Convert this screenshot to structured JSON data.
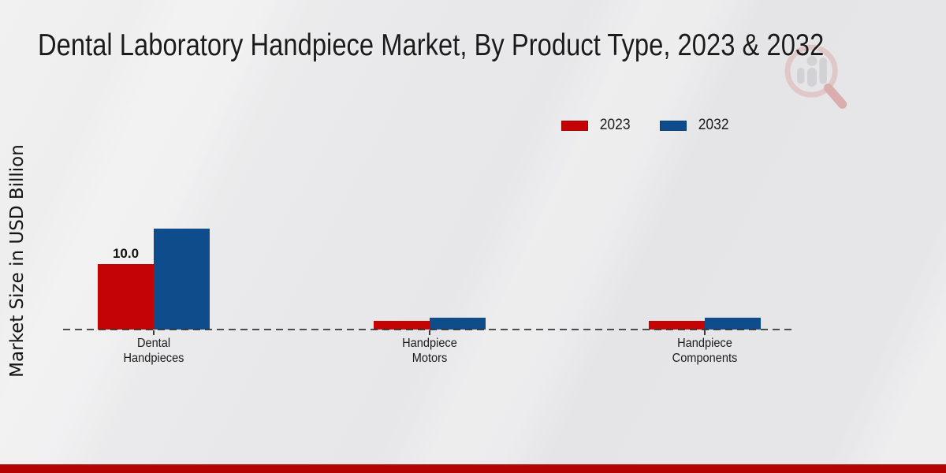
{
  "page": {
    "title": "Dental Laboratory Handpiece Market, By Product Type, 2023 & 2032",
    "y_axis_label": "Market Size in USD Billion",
    "watermark_icon": "magnifier-bar-chart-logo"
  },
  "legend": {
    "items": [
      {
        "label": "2023",
        "color": "#c40404"
      },
      {
        "label": "2032",
        "color": "#0f4c8c"
      }
    ]
  },
  "colors": {
    "bar_2023": "#c40404",
    "bar_2032": "#0f4c8c",
    "footer_bar": "#b50404",
    "background": "#e8e8ea",
    "baseline": "#2a2a2a"
  },
  "chart_data": {
    "type": "bar",
    "title": "Dental Laboratory Handpiece Market, By Product Type, 2023 & 2032",
    "xlabel": "",
    "ylabel": "Market Size in USD Billion",
    "categories": [
      "Dental Handpieces",
      "Handpiece Motors",
      "Handpiece Components"
    ],
    "category_label_lines": [
      [
        "Dental",
        "Handpieces"
      ],
      [
        "Handpiece",
        "Motors"
      ],
      [
        "Handpiece",
        "Components"
      ]
    ],
    "series": [
      {
        "name": "2023",
        "color": "#c40404",
        "values": [
          10.0,
          1.3,
          1.3
        ]
      },
      {
        "name": "2032",
        "color": "#0f4c8c",
        "values": [
          15.4,
          1.8,
          1.8
        ]
      }
    ],
    "annotations": [
      {
        "text": "10.0",
        "series": "2023",
        "category": "Dental Handpieces"
      }
    ],
    "ylim": [
      0,
      16
    ],
    "grid": false,
    "legend_position": "upper right",
    "baseline_style": "dashed"
  }
}
